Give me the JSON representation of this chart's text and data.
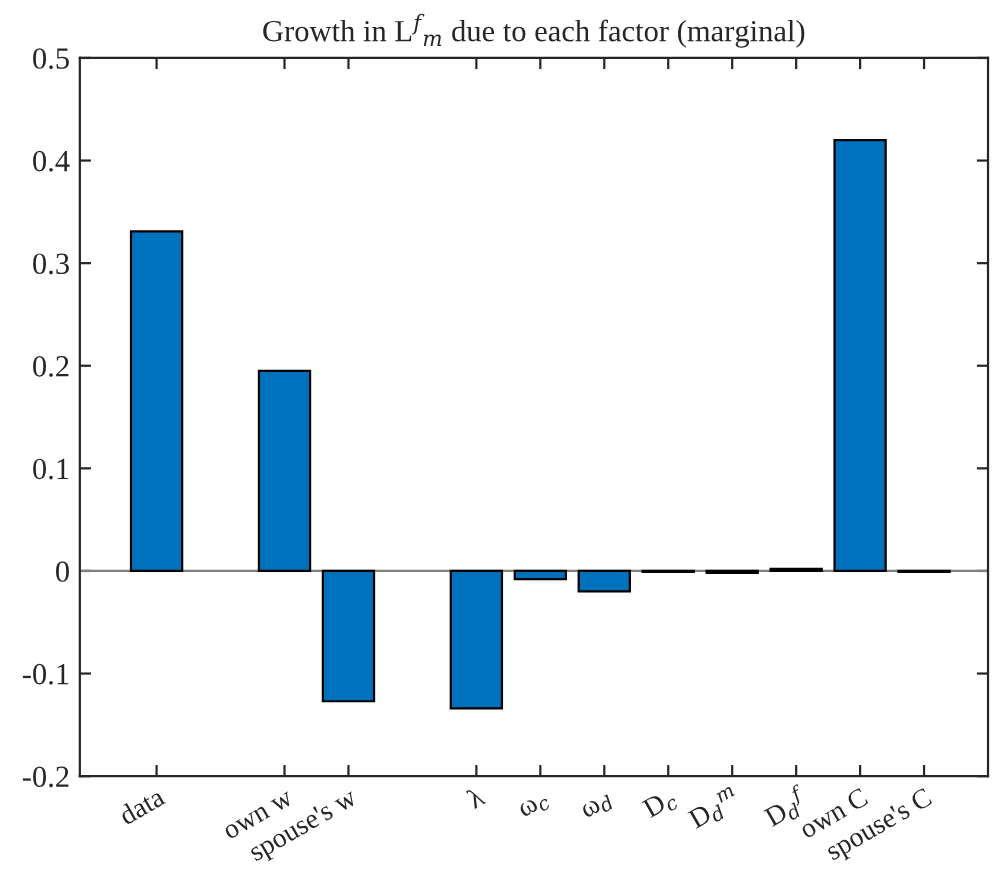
{
  "chart_data": {
    "type": "bar",
    "title": "Growth in L$^{f}$$_{m}$ due to each factor (marginal)",
    "categories": [
      "data",
      null,
      "own w",
      "spouse's w",
      null,
      "λ",
      "ω$_{c}$",
      "ω$_{d}$",
      "D$_{c}$",
      "D$_{d}$$^{m}$",
      "D$_{d}$$^{f}$",
      "own C",
      "spouse's C"
    ],
    "values": [
      0.331,
      null,
      0.195,
      -0.127,
      null,
      -0.134,
      -0.008,
      -0.02,
      -0.001,
      -0.002,
      0.002,
      0.42,
      -0.001
    ],
    "color": "#0072bd",
    "ylim": [
      -0.2,
      0.5
    ],
    "yticks": [
      -0.2,
      -0.1,
      0,
      0.1,
      0.2,
      0.3,
      0.4,
      0.5
    ],
    "ref_lines": [
      {
        "axis": "y",
        "value": 0,
        "color": "#808080"
      }
    ],
    "grid": false,
    "legend": false
  }
}
